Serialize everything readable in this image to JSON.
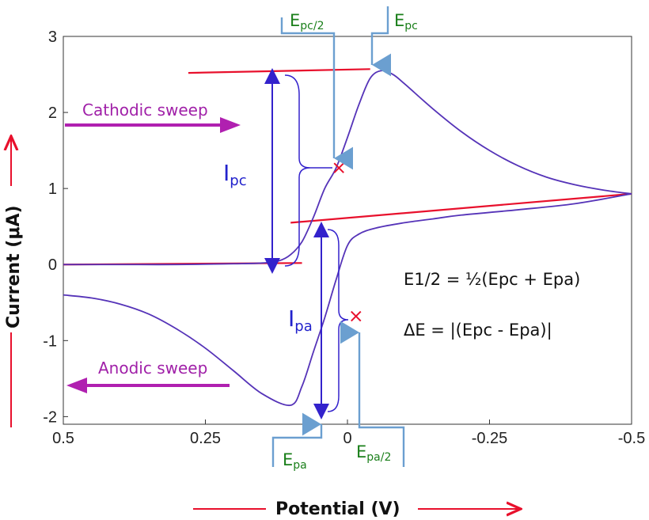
{
  "chart_data": {
    "type": "line",
    "title": "",
    "xlabel": "Potential (V)",
    "ylabel": "Current (μA)",
    "xlim": [
      0.5,
      -0.5
    ],
    "ylim": [
      -2.1,
      3
    ],
    "x_ticks": [
      {
        "value": 0.5,
        "label": "0.5"
      },
      {
        "value": 0.25,
        "label": "0.25"
      },
      {
        "value": 0,
        "label": "0"
      },
      {
        "value": -0.25,
        "label": "-0.25"
      },
      {
        "value": -0.5,
        "label": "-0.5"
      }
    ],
    "y_ticks": [
      {
        "value": 3,
        "label": "3"
      },
      {
        "value": 2,
        "label": "2"
      },
      {
        "value": 1,
        "label": "1"
      },
      {
        "value": 0,
        "label": "0"
      },
      {
        "value": -1,
        "label": "-1"
      },
      {
        "value": -2,
        "label": "-2"
      }
    ],
    "series": [
      {
        "x": [
          0.5,
          0.4,
          0.3,
          0.2,
          0.15,
          0.12,
          0.1,
          0.08,
          0.06,
          0.04,
          0.02,
          0.0,
          -0.02,
          -0.04,
          -0.06,
          -0.08,
          -0.1,
          -0.15,
          -0.2,
          -0.25,
          -0.3,
          -0.35,
          -0.4,
          -0.45,
          -0.5
        ],
        "y": [
          0.0,
          0.0,
          0.0,
          0.01,
          0.02,
          0.05,
          0.13,
          0.3,
          0.62,
          1.0,
          1.27,
          1.67,
          2.1,
          2.45,
          2.55,
          2.5,
          2.38,
          2.05,
          1.75,
          1.5,
          1.3,
          1.15,
          1.05,
          0.98,
          0.93
        ]
      },
      {
        "x": [
          -0.5,
          -0.4,
          -0.3,
          -0.2,
          -0.15,
          -0.1,
          -0.05,
          -0.02,
          0.0,
          0.02,
          0.04,
          0.06,
          0.08,
          0.1,
          0.15,
          0.2,
          0.25,
          0.3,
          0.35,
          0.4,
          0.45,
          0.5
        ],
        "y": [
          0.93,
          0.8,
          0.72,
          0.65,
          0.6,
          0.55,
          0.48,
          0.4,
          0.25,
          -0.2,
          -0.7,
          -1.15,
          -1.6,
          -1.85,
          -1.7,
          -1.4,
          -1.1,
          -0.85,
          -0.65,
          -0.52,
          -0.44,
          -0.4
        ]
      }
    ],
    "baselines": [
      {
        "x": [
          0.5,
          0.08
        ],
        "y": [
          0.0,
          0.02
        ]
      },
      {
        "x": [
          0.28,
          -0.04
        ],
        "y": [
          2.52,
          2.57
        ]
      },
      {
        "x": [
          0.1,
          -0.5
        ],
        "y": [
          0.55,
          0.93
        ]
      }
    ],
    "markers": [
      {
        "x": 0.015,
        "y": 1.27,
        "symbol": "x"
      },
      {
        "x": -0.015,
        "y": -0.68,
        "symbol": "x"
      }
    ]
  },
  "annotations": {
    "cathodic_sweep": "Cathodic sweep",
    "anodic_sweep": "Anodic sweep",
    "E_pc": "E",
    "E_pc_sub": "pc",
    "E_pc2": "E",
    "E_pc2_sub": "pc/2",
    "E_pa": "E",
    "E_pa_sub": "pa",
    "E_pa2": "E",
    "E_pa2_sub": "pa/2",
    "I_pc": "I",
    "I_pc_sub": "pc",
    "I_pa": "I",
    "I_pa_sub": "pa",
    "formula1": "E1/2 = ½(Epc + Epa)",
    "formula2": "ΔE = |(Epc - Epa)|"
  },
  "colors": {
    "curve": "#5533b8",
    "baseline": "#e8102c",
    "marker": "#e8102c",
    "arrow": "#2e22cc",
    "sweep": "#b020b0",
    "callout": "#6b9fd0",
    "green_text": "#1a7f1a"
  }
}
